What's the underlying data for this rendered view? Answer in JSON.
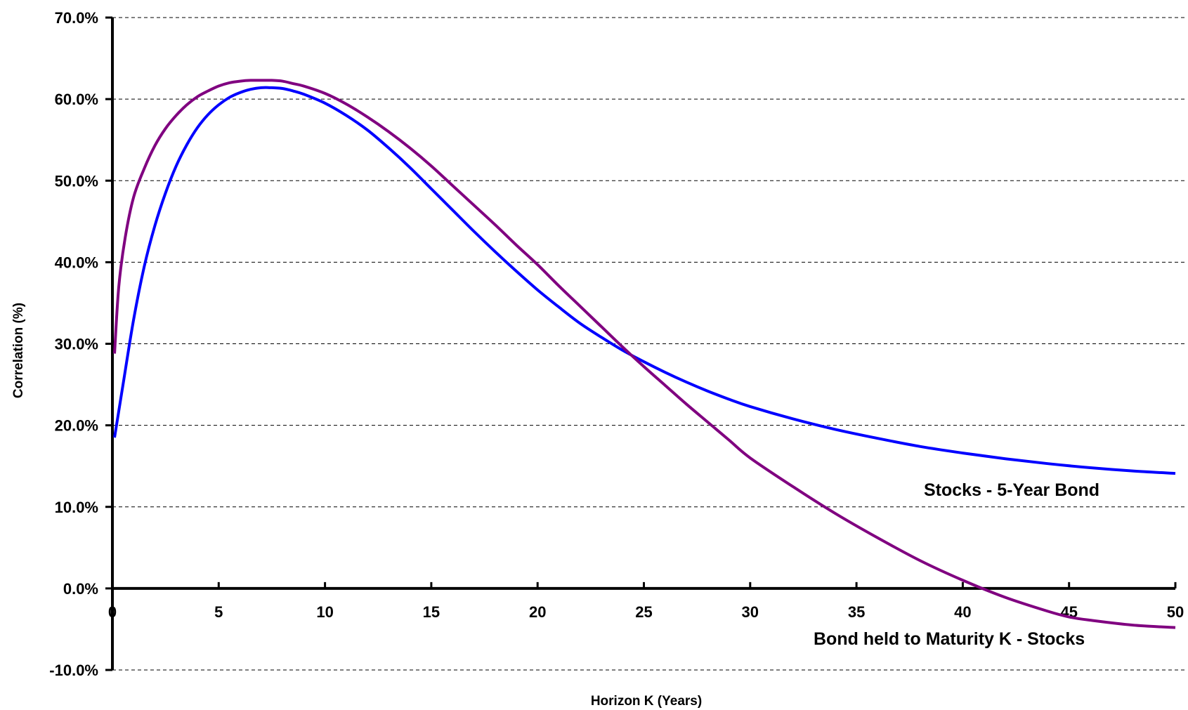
{
  "chart_data": {
    "type": "line",
    "title": "",
    "xlabel": "Horizon K (Years)",
    "ylabel": "Correlation (%)",
    "xlim": [
      0,
      50
    ],
    "ylim": [
      -10,
      70
    ],
    "x_ticks": [
      0,
      5,
      10,
      15,
      20,
      25,
      30,
      35,
      40,
      45,
      50
    ],
    "x_tick_labels": [
      "0",
      "5",
      "10",
      "15",
      "20",
      "25",
      "30",
      "35",
      "40",
      "45",
      "50"
    ],
    "y_ticks": [
      -10,
      0,
      10,
      20,
      30,
      40,
      50,
      60,
      70
    ],
    "y_tick_labels": [
      "-10.0%",
      "0.0%",
      "10.0%",
      "20.0%",
      "30.0%",
      "40.0%",
      "50.0%",
      "60.0%",
      "70.0%"
    ],
    "grid": "horizontal dashed",
    "legend": "none (inline labels)",
    "series": [
      {
        "name": "Stocks - 5-Year Bond",
        "color": "#0000ff",
        "x": [
          0.1,
          0.5,
          1,
          1.5,
          2,
          2.5,
          3,
          3.5,
          4,
          4.5,
          5,
          5.5,
          6,
          6.5,
          7,
          7.5,
          8,
          8.5,
          9,
          10,
          11,
          12,
          13,
          14,
          15,
          16,
          17,
          18,
          19,
          20,
          21,
          22,
          23,
          24,
          25,
          26,
          27,
          28,
          29,
          30,
          32,
          34,
          36,
          38,
          40,
          42,
          44,
          46,
          48,
          50
        ],
        "values": [
          18.5,
          25.0,
          33.0,
          39.5,
          44.5,
          48.5,
          51.8,
          54.4,
          56.5,
          58.1,
          59.3,
          60.2,
          60.8,
          61.2,
          61.4,
          61.4,
          61.3,
          61.0,
          60.6,
          59.5,
          58.0,
          56.2,
          54.0,
          51.6,
          49.0,
          46.4,
          43.8,
          41.3,
          38.9,
          36.6,
          34.5,
          32.5,
          30.8,
          29.2,
          27.8,
          26.5,
          25.3,
          24.2,
          23.2,
          22.3,
          20.8,
          19.5,
          18.4,
          17.4,
          16.6,
          15.9,
          15.3,
          14.8,
          14.4,
          14.1
        ]
      },
      {
        "name": "Bond held to Maturity K  - Stocks",
        "color": "#800080",
        "x": [
          0.1,
          0.3,
          0.6,
          1,
          1.5,
          2,
          2.5,
          3,
          3.5,
          4,
          4.5,
          5,
          5.5,
          6,
          6.5,
          7,
          7.5,
          8,
          8.5,
          9,
          10,
          11,
          12,
          13,
          14,
          15,
          16,
          17,
          18,
          19,
          20,
          21,
          22,
          23,
          24,
          25,
          26,
          27,
          28,
          29,
          30,
          32,
          34,
          36,
          38,
          40,
          42,
          44,
          45,
          46,
          48,
          50
        ],
        "values": [
          28.8,
          37.0,
          43.0,
          48.0,
          51.5,
          54.3,
          56.4,
          58.0,
          59.3,
          60.3,
          61.0,
          61.6,
          62.0,
          62.2,
          62.3,
          62.3,
          62.3,
          62.2,
          61.9,
          61.6,
          60.7,
          59.4,
          57.8,
          56.0,
          54.0,
          51.8,
          49.4,
          47.0,
          44.6,
          42.1,
          39.7,
          37.1,
          34.6,
          32.1,
          29.6,
          27.2,
          24.9,
          22.6,
          20.4,
          18.2,
          16.0,
          12.5,
          9.2,
          6.2,
          3.4,
          1.0,
          -1.1,
          -2.8,
          -3.5,
          -3.9,
          -4.5,
          -4.8
        ]
      }
    ]
  }
}
